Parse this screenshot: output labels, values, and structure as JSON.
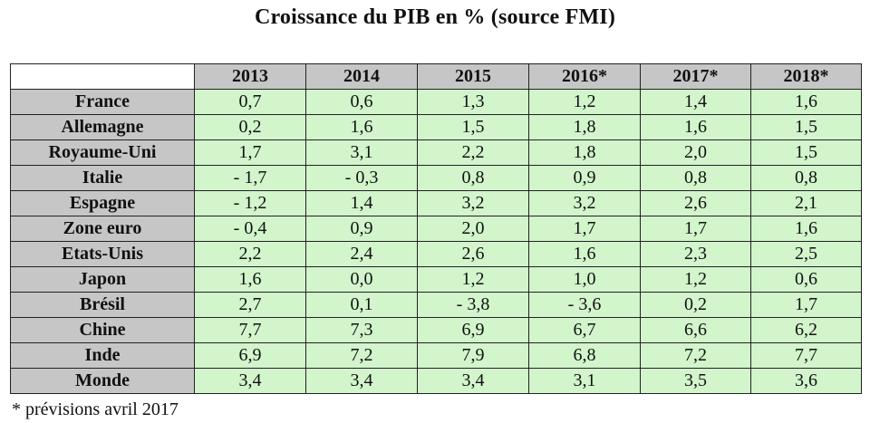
{
  "title": "Croissance du PIB en % (source FMI)",
  "columns": [
    "2013",
    "2014",
    "2015",
    "2016*",
    "2017*",
    "2018*"
  ],
  "rows": [
    {
      "country": "France",
      "values": [
        "0,7",
        "0,6",
        "1,3",
        "1,2",
        "1,4",
        "1,6"
      ]
    },
    {
      "country": "Allemagne",
      "values": [
        "0,2",
        "1,6",
        "1,5",
        "1,8",
        "1,6",
        "1,5"
      ]
    },
    {
      "country": "Royaume-Uni",
      "values": [
        "1,7",
        "3,1",
        "2,2",
        "1,8",
        "2,0",
        "1,5"
      ]
    },
    {
      "country": "Italie",
      "values": [
        "- 1,7",
        "- 0,3",
        "0,8",
        "0,9",
        "0,8",
        "0,8"
      ]
    },
    {
      "country": "Espagne",
      "values": [
        "- 1,2",
        "1,4",
        "3,2",
        "3,2",
        "2,6",
        "2,1"
      ]
    },
    {
      "country": "Zone euro",
      "values": [
        "- 0,4",
        "0,9",
        "2,0",
        "1,7",
        "1,7",
        "1,6"
      ]
    },
    {
      "country": "Etats-Unis",
      "values": [
        "2,2",
        "2,4",
        "2,6",
        "1,6",
        "2,3",
        "2,5"
      ]
    },
    {
      "country": "Japon",
      "values": [
        "1,6",
        "0,0",
        "1,2",
        "1,0",
        "1,2",
        "0,6"
      ]
    },
    {
      "country": "Brésil",
      "values": [
        "2,7",
        "0,1",
        "- 3,8",
        "- 3,6",
        "0,2",
        "1,7"
      ]
    },
    {
      "country": "Chine",
      "values": [
        "7,7",
        "7,3",
        "6,9",
        "6,7",
        "6,6",
        "6,2"
      ]
    },
    {
      "country": "Inde",
      "values": [
        "6,9",
        "7,2",
        "7,9",
        "6,8",
        "7,2",
        "7,7"
      ]
    },
    {
      "country": "Monde",
      "values": [
        "3,4",
        "3,4",
        "3,4",
        "3,1",
        "3,5",
        "3,6"
      ]
    }
  ],
  "footnote": "* prévisions avril 2017",
  "colors": {
    "header_bg": "#c6c6c6",
    "cell_bg": "#d2f5cc",
    "border": "#222222"
  }
}
